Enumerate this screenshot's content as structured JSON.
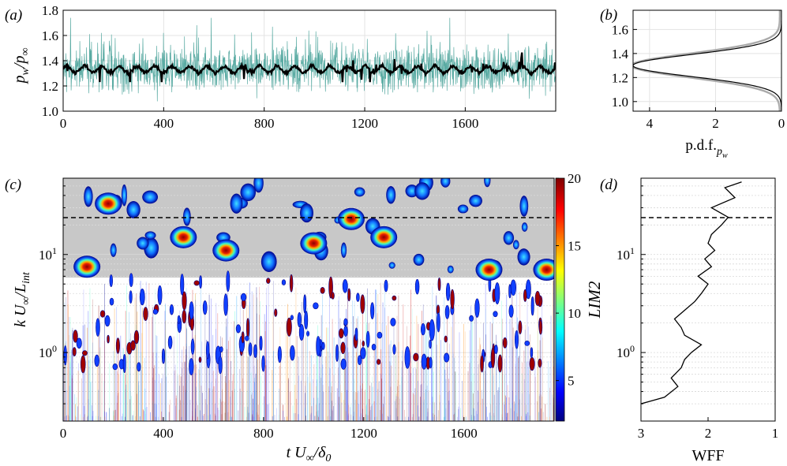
{
  "figure": {
    "panels": [
      "(a)",
      "(b)",
      "(c)",
      "(d)"
    ],
    "colorbar_label": "LIM2",
    "colorbar_ticks": [
      "5",
      "10",
      "15",
      "20"
    ]
  },
  "chart_data": [
    {
      "panel": "(a)",
      "type": "line",
      "xlabel": "",
      "ylabel": "p_w/p_∞",
      "xlim": [
        0,
        1960
      ],
      "ylim": [
        1.0,
        1.8
      ],
      "xticks": [
        "0",
        "400",
        "800",
        "1200",
        "1600"
      ],
      "yticks": [
        "1.0",
        "1.2",
        "1.4",
        "1.6",
        "1.8"
      ],
      "grid": true,
      "series": [
        {
          "color": "#5aaba3",
          "mean": 1.33,
          "min": 1.04,
          "max": 1.74
        },
        {
          "color": "#000000",
          "mean": 1.33,
          "min": 1.23,
          "max": 1.48
        }
      ]
    },
    {
      "panel": "(b)",
      "type": "line",
      "xlabel": "p.d.f._{p_w}",
      "ylabel": "",
      "xlim": [
        4.5,
        0
      ],
      "ylim": [
        0.92,
        1.76
      ],
      "xticks": [
        "4",
        "2",
        "0"
      ],
      "yticks": [
        "1.0",
        "1.2",
        "1.4",
        "1.6"
      ],
      "grid": true,
      "peak": {
        "y": 1.3,
        "pdf": 4.5
      }
    },
    {
      "panel": "(c)",
      "type": "heatmap",
      "xlabel": "t U_∞/δ_0",
      "ylabel": "k U_∞/L_int",
      "xlim": [
        0,
        1960
      ],
      "ylim": [
        0.2,
        60
      ],
      "yscale": "log",
      "xticks": [
        "0",
        "400",
        "800",
        "1200",
        "1600"
      ],
      "yticks": [
        "10^0",
        "10^1"
      ],
      "colorbar_range": [
        2,
        20
      ],
      "shaded_region_above_k": 5.5,
      "dashed_line_k": 24,
      "hotspots": [
        {
          "t": 180,
          "k": 33
        },
        {
          "t": 480,
          "k": 15
        },
        {
          "t": 650,
          "k": 11
        },
        {
          "t": 1150,
          "k": 23
        },
        {
          "t": 1280,
          "k": 15
        },
        {
          "t": 1000,
          "k": 13
        },
        {
          "t": 95,
          "k": 7.5
        },
        {
          "t": 1700,
          "k": 7
        },
        {
          "t": 1930,
          "k": 7
        }
      ]
    },
    {
      "panel": "(d)",
      "type": "line",
      "xlabel": "WFF",
      "ylabel": "",
      "xlim": [
        3,
        1
      ],
      "ylim": [
        0.2,
        60
      ],
      "yscale": "log",
      "xticks": [
        "3",
        "2",
        "1"
      ],
      "yticks": [
        "10^0",
        "10^1"
      ],
      "dashed_line_k": 24,
      "k": [
        0.3,
        0.35,
        0.45,
        0.55,
        0.7,
        0.85,
        1.0,
        1.2,
        1.5,
        1.8,
        2.2,
        2.7,
        3.3,
        4.0,
        5.0,
        6.0,
        7.5,
        9.0,
        11,
        13,
        16,
        20,
        24,
        30,
        38,
        48,
        55
      ],
      "values": [
        3.0,
        2.65,
        2.45,
        2.55,
        2.4,
        2.35,
        2.25,
        2.1,
        2.35,
        2.4,
        2.5,
        2.35,
        2.2,
        2.1,
        2.0,
        2.15,
        1.95,
        2.05,
        1.9,
        2.0,
        1.95,
        1.8,
        1.7,
        1.95,
        1.6,
        1.75,
        1.5
      ]
    }
  ]
}
